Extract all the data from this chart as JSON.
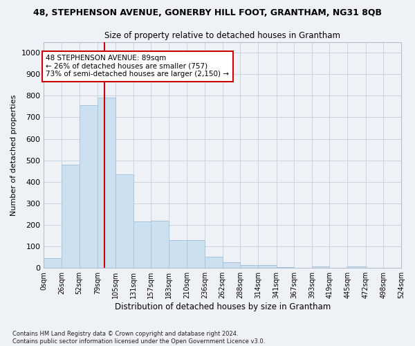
{
  "title": "48, STEPHENSON AVENUE, GONERBY HILL FOOT, GRANTHAM, NG31 8QB",
  "subtitle": "Size of property relative to detached houses in Grantham",
  "xlabel": "Distribution of detached houses by size in Grantham",
  "ylabel": "Number of detached properties",
  "bar_color": "#cce0f0",
  "bar_edgecolor": "#a8c4dc",
  "grid_color": "#c8d4e0",
  "background_color": "#eef2f7",
  "property_line_x": 89,
  "property_line_color": "#cc0000",
  "annotation_text": "48 STEPHENSON AVENUE: 89sqm\n← 26% of detached houses are smaller (757)\n73% of semi-detached houses are larger (2,150) →",
  "annotation_box_color": "#ffffff",
  "annotation_box_edgecolor": "#cc0000",
  "bins": [
    0,
    26,
    52,
    79,
    105,
    131,
    157,
    183,
    210,
    236,
    262,
    288,
    314,
    341,
    367,
    393,
    419,
    445,
    472,
    498,
    524
  ],
  "bin_labels": [
    "0sqm",
    "26sqm",
    "52sqm",
    "79sqm",
    "105sqm",
    "131sqm",
    "157sqm",
    "183sqm",
    "210sqm",
    "236sqm",
    "262sqm",
    "288sqm",
    "314sqm",
    "341sqm",
    "367sqm",
    "393sqm",
    "419sqm",
    "445sqm",
    "472sqm",
    "498sqm",
    "524sqm"
  ],
  "bar_heights": [
    45,
    480,
    755,
    790,
    435,
    215,
    218,
    130,
    130,
    52,
    27,
    15,
    12,
    5,
    0,
    8,
    0,
    7,
    0,
    0
  ],
  "ylim": [
    0,
    1050
  ],
  "yticks": [
    0,
    100,
    200,
    300,
    400,
    500,
    600,
    700,
    800,
    900,
    1000
  ],
  "footnote": "Contains HM Land Registry data © Crown copyright and database right 2024.\nContains public sector information licensed under the Open Government Licence v3.0."
}
